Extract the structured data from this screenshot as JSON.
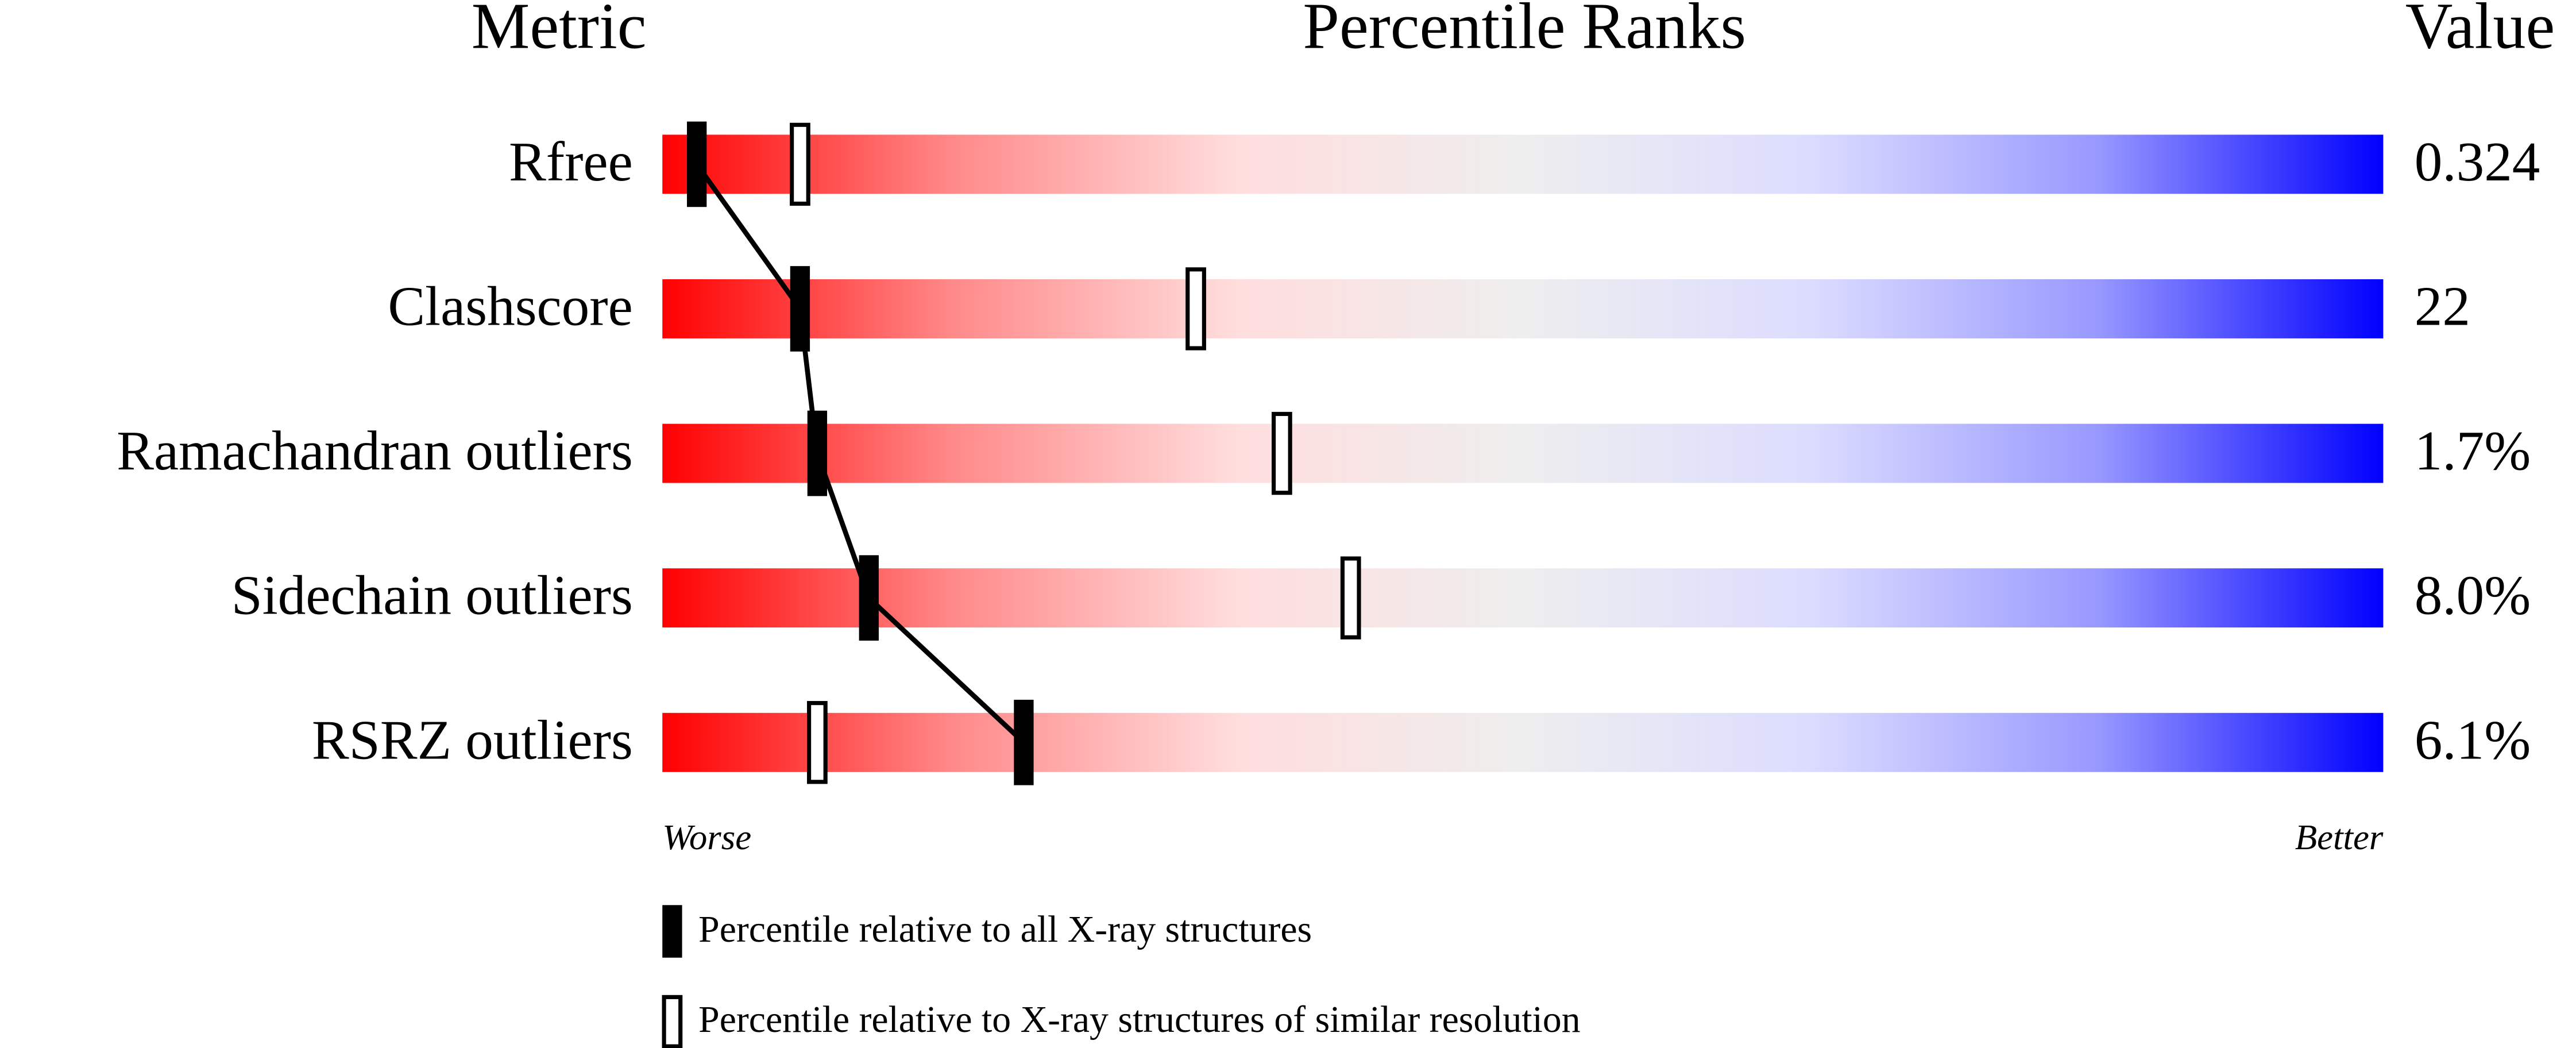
{
  "chart_data": {
    "type": "percentile",
    "headers": [
      "Metric",
      "Percentile Ranks",
      "Value"
    ],
    "categories": [
      "Rfree",
      "Clashscore",
      "Ramachandran outliers",
      "Sidechain outliers",
      "RSRZ outliers"
    ],
    "metric_values": [
      "0.324",
      "22",
      "1.7%",
      "8.0%",
      "6.1%"
    ],
    "series": [
      {
        "name": "Percentile relative to all X-ray structures",
        "marker": "filled",
        "color": "#000000",
        "values": [
          2,
          8,
          9,
          12,
          21
        ]
      },
      {
        "name": "Percentile relative to X-ray structures of similar resolution",
        "marker": "open",
        "color": "#000000",
        "values": [
          8,
          31,
          36,
          40,
          9
        ]
      }
    ],
    "xlim": [
      0,
      100
    ],
    "x_start_label": "Worse",
    "x_end_label": "Better",
    "gradient": [
      "#ff0000",
      "#ff8888",
      "#ffdddd",
      "#eeeeee",
      "#dcdcff",
      "#9999ff",
      "#0000ff"
    ]
  }
}
